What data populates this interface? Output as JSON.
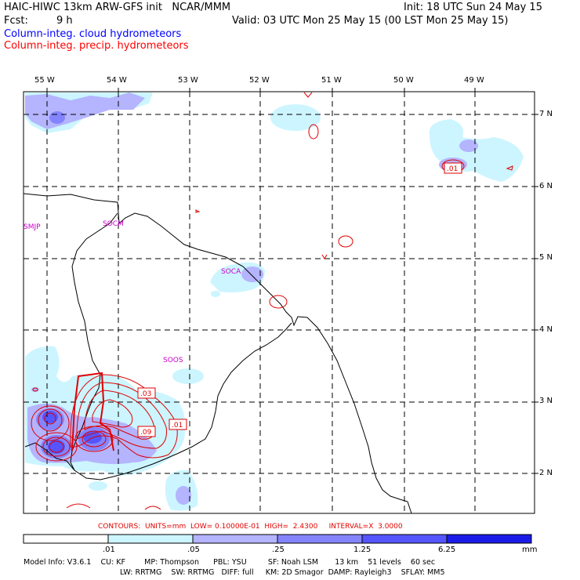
{
  "header": {
    "title": "HAIC-HIWC 13km ARW-GFS init   NCAR/MMM",
    "init": "Init: 18 UTC Sun 24 May 15",
    "fcst_label": "Fcst:",
    "fcst_value": "9 h",
    "valid": "Valid: 03 UTC Mon 25 May 15 (00 LST Mon 25 May 15)",
    "field1": "Column-integ. cloud hydrometeors",
    "field2": "Column-integ. precip. hydrometeors",
    "field1_color": "#0000ff",
    "field2_color": "#ff0000"
  },
  "axes": {
    "lon_labels": [
      "55 W",
      "54 W",
      "53 W",
      "52 W",
      "51 W",
      "50 W",
      "49 W"
    ],
    "lat_labels": [
      "7 N",
      "6 N",
      "5 N",
      "4 N",
      "3 N",
      "2 N"
    ]
  },
  "stations": [
    "SMJP",
    "SOCM",
    "SOCA",
    "SOOS"
  ],
  "contour_labels": [
    ".01",
    ".03",
    ".09",
    ".01"
  ],
  "contours_line": "CONTOURS:  UNITS=mm  LOW= 0.10000E-01  HIGH=  2.4300     INTERVAL=X  3.0000",
  "colorbar": {
    "ticks": [
      ".01",
      ".05",
      ".25",
      "1.25",
      "6.25"
    ],
    "units": "mm",
    "colors": [
      "#ffffff",
      "#ccf5ff",
      "#b4b4ff",
      "#8484ff",
      "#5555ff",
      "#1b1be8"
    ]
  },
  "model_info": {
    "line1": "Model Info: V3.6.1    CU: KF        MP: Thompson      PBL: YSU         SF: Noah LSM       13 km    51 levels    60 sec",
    "line2": "LW: RRTMG    SW: RRTMG   DIFF: full     KM: 2D Smagor  DAMP: Rayleigh3    SFLAY: MM5"
  }
}
